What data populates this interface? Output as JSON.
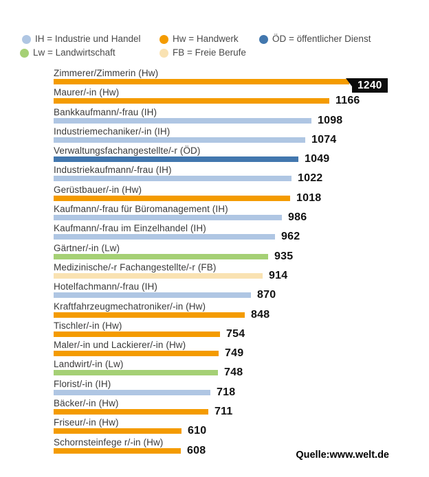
{
  "legend": {
    "items": [
      {
        "key": "IH",
        "label": "IH = Industrie und Handel",
        "color": "#AFC6E3",
        "row": 1
      },
      {
        "key": "Hw",
        "label": "Hw = Handwerk",
        "color": "#F49B00",
        "row": 1
      },
      {
        "key": "ÖD",
        "label": "ÖD = öffentlicher Dienst",
        "color": "#4277AE",
        "row": 1
      },
      {
        "key": "Lw",
        "label": "Lw = Landwirtschaft",
        "color": "#A5D075",
        "row": 2
      },
      {
        "key": "FB",
        "label": "FB = Freie Berufe",
        "color": "#F9E2B2",
        "row": 2
      }
    ]
  },
  "source": "Quelle:www.welt.de",
  "chart_data": {
    "type": "bar",
    "orientation": "horizontal",
    "categories": [
      "Zimmerer/Zimmerin (Hw)",
      "Maurer/-in (Hw)",
      "Bankkaufmann/-frau (IH)",
      "Industriemechaniker/-in (IH)",
      "Verwaltungsfachangestellte/-r (ÖD)",
      "Industriekaufmann/-frau (IH)",
      "Gerüstbauer/-in (Hw)",
      "Kaufmann/-frau für Büromanagement (IH)",
      "Kaufmann/-frau im Einzelhandel (IH)",
      "Gärtner/-in (Lw)",
      "Medizinische/-r Fachangestellte/-r (FB)",
      "Hotelfachmann/-frau (IH)",
      "Kraftfahrzeugmechatroniker/-in (Hw)",
      "Tischler/-in (Hw)",
      "Maler/-in und Lackierer/-in (Hw)",
      "Landwirt/-in (Lw)",
      "Florist/-in (IH)",
      "Bäcker/-in (Hw)",
      "Friseur/-in (Hw)",
      "Schornsteinfege r/-in (Hw)"
    ],
    "values": [
      1240,
      1166,
      1098,
      1074,
      1049,
      1022,
      1018,
      986,
      962,
      935,
      914,
      870,
      848,
      754,
      749,
      748,
      718,
      711,
      610,
      608
    ],
    "groups": [
      "Hw",
      "Hw",
      "IH",
      "IH",
      "ÖD",
      "IH",
      "Hw",
      "IH",
      "IH",
      "Lw",
      "FB",
      "IH",
      "Hw",
      "Hw",
      "Hw",
      "Lw",
      "IH",
      "Hw",
      "Hw",
      "Hw"
    ],
    "colors": {
      "IH": "#AFC6E3",
      "Hw": "#F49B00",
      "ÖD": "#4277AE",
      "Lw": "#A5D075",
      "FB": "#F9E2B2"
    },
    "highlight_index": 0,
    "highlight_style": "black-callout-white-text",
    "title": "",
    "xlabel": "",
    "ylabel": "",
    "grid": false,
    "legend_position": "top"
  }
}
